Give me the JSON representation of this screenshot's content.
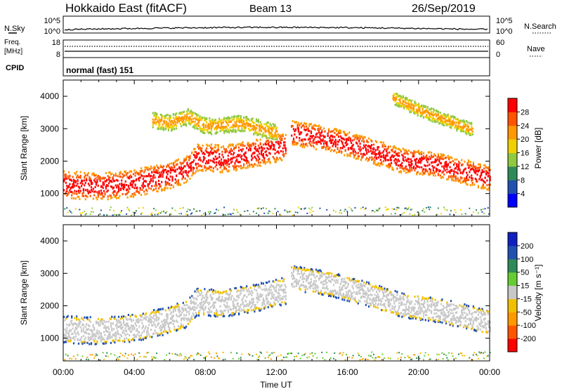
{
  "header": {
    "title": "Hokkaido East (fitACF)",
    "beam": "Beam 13",
    "date": "26/Sep/2019"
  },
  "noise_panel": {
    "left_label": "N.Sky",
    "left_ticks": [
      "10^5",
      "10^0"
    ],
    "right_ticks": [
      "10^5",
      "10^0"
    ],
    "right_label": "N.Search"
  },
  "freq_panel": {
    "left_label_1": "Freq.",
    "left_label_2": "[MHz]",
    "left_ticks": [
      "18",
      "8"
    ],
    "right_ticks": [
      "60",
      "0"
    ],
    "right_label": "Nave"
  },
  "cpid_panel": {
    "label": "CPID",
    "text": "normal (fast) 151"
  },
  "chart_data": [
    {
      "type": "heatmap",
      "panel": "power",
      "ylabel": "Slant Range [km]",
      "xlabel": "",
      "y_ticks": [
        "1000",
        "2000",
        "3000",
        "4000"
      ],
      "ylim": [
        300,
        4500
      ],
      "xlim": [
        0,
        24
      ],
      "colorbar": {
        "label": "Power [dB]",
        "ticks": [
          "4",
          "8",
          "12",
          "16",
          "20",
          "24",
          "28"
        ],
        "range": [
          0,
          32
        ],
        "colors": [
          "#0000ff",
          "#2050b0",
          "#2e8b57",
          "#90c840",
          "#f0d000",
          "#ff9900",
          "#ff5500",
          "#ff0000"
        ]
      },
      "bands": [
        {
          "t": [
            0,
            2,
            4,
            6,
            7,
            7.5,
            9,
            11,
            12.5
          ],
          "r": [
            1300,
            1250,
            1350,
            1600,
            1800,
            2150,
            2100,
            2300,
            2500
          ],
          "w": 420,
          "level": "high"
        },
        {
          "t": [
            12.8,
            15,
            17,
            19,
            21,
            23,
            24
          ],
          "r": [
            2900,
            2700,
            2400,
            2050,
            1900,
            1650,
            1500
          ],
          "w": 380,
          "level": "high"
        },
        {
          "t": [
            5,
            6,
            7,
            8,
            10,
            12
          ],
          "r": [
            3300,
            3200,
            3400,
            3100,
            3200,
            2900
          ],
          "w": 250,
          "level": "mid"
        },
        {
          "t": [
            18.5,
            20,
            21.5,
            23
          ],
          "r": [
            4000,
            3600,
            3300,
            3000
          ],
          "w": 200,
          "level": "mid"
        }
      ]
    },
    {
      "type": "heatmap",
      "panel": "velocity",
      "ylabel": "Slant Range [km]",
      "xlabel": "Time UT",
      "y_ticks": [
        "1000",
        "2000",
        "3000",
        "4000"
      ],
      "ylim": [
        300,
        4500
      ],
      "xlim": [
        0,
        24
      ],
      "x_ticks": [
        "00:00",
        "04:00",
        "08:00",
        "12:00",
        "16:00",
        "20:00",
        "00:00"
      ],
      "colorbar": {
        "label": "Velocity [m s⁻¹]",
        "ticks": [
          "200",
          "100",
          "50",
          "15",
          "-15",
          "-50",
          "-100",
          "-200"
        ],
        "colors": [
          "#1020c0",
          "#2050b0",
          "#2e8b57",
          "#66cc33",
          "#c8c8c8",
          "#f0c000",
          "#ff9900",
          "#ff5500",
          "#ff0000"
        ]
      },
      "bands": [
        {
          "t": [
            0,
            2,
            4,
            6,
            7,
            7.5,
            9,
            11,
            12.5
          ],
          "r": [
            1300,
            1250,
            1350,
            1600,
            1800,
            2150,
            2100,
            2300,
            2500
          ],
          "w": 420,
          "level": "ground"
        },
        {
          "t": [
            12.8,
            15,
            17,
            19,
            21,
            23,
            24
          ],
          "r": [
            2900,
            2700,
            2400,
            2050,
            1900,
            1650,
            1500
          ],
          "w": 380,
          "level": "ground"
        }
      ]
    }
  ]
}
